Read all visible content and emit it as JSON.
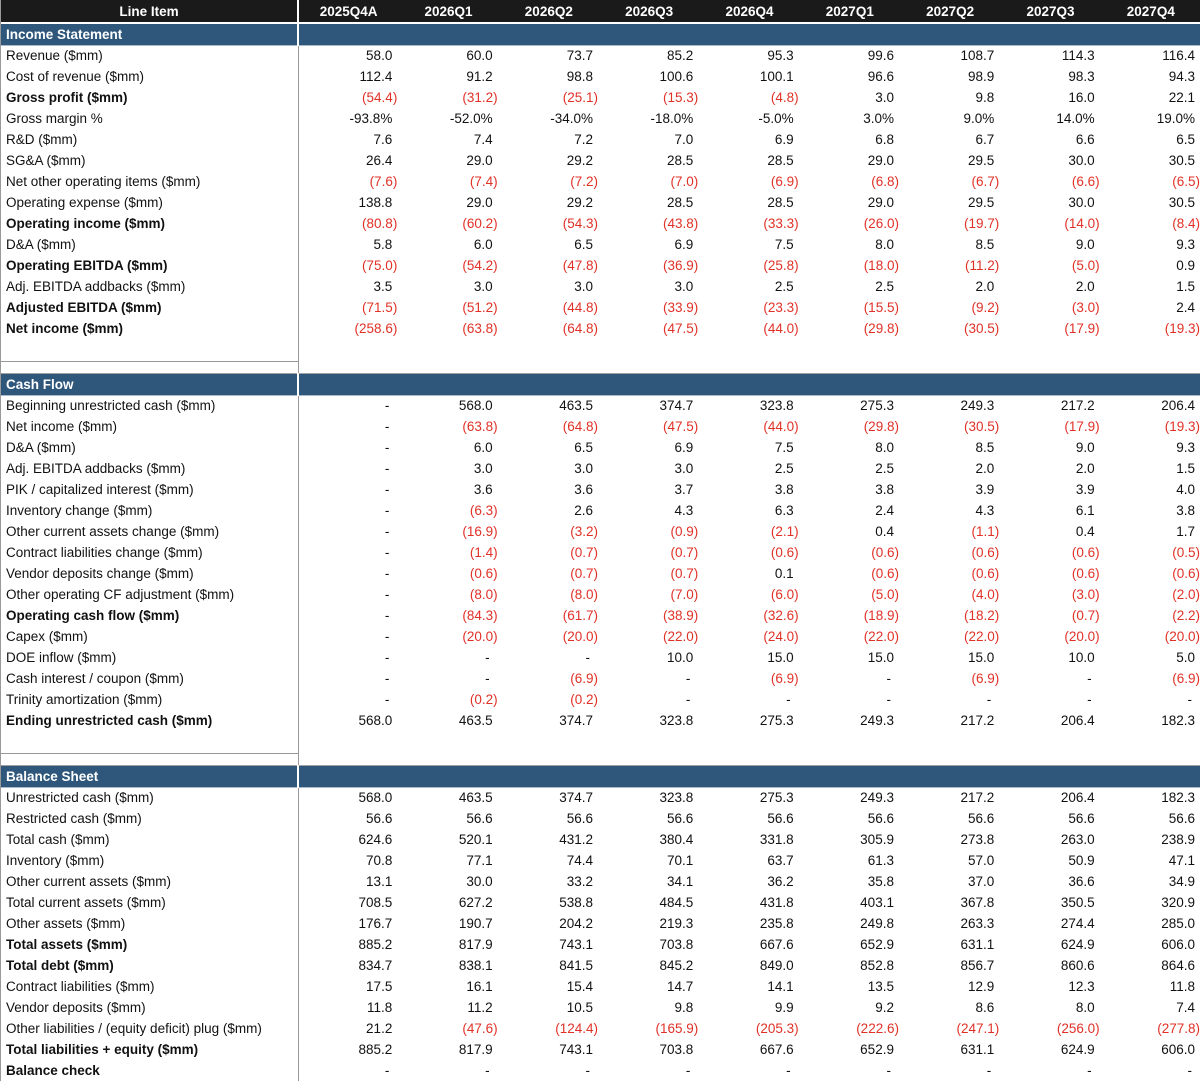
{
  "colors": {
    "header_bg": "#1a1a1a",
    "section_band_bg": "#2f577c",
    "negative_value": "#e03127",
    "grid_line": "#999999"
  },
  "header": {
    "line_item_label": "Line Item",
    "columns": [
      "2025Q4A",
      "2026Q1",
      "2026Q2",
      "2026Q3",
      "2026Q4",
      "2027Q1",
      "2027Q2",
      "2027Q3",
      "2027Q4"
    ]
  },
  "sections": [
    {
      "title": "Income Statement",
      "rows": [
        {
          "label": "Revenue ($mm)",
          "bold": false,
          "values": [
            "58.0",
            "60.0",
            "73.7",
            "85.2",
            "95.3",
            "99.6",
            "108.7",
            "114.3",
            "116.4"
          ]
        },
        {
          "label": "Cost of revenue ($mm)",
          "bold": false,
          "values": [
            "112.4",
            "91.2",
            "98.8",
            "100.6",
            "100.1",
            "96.6",
            "98.9",
            "98.3",
            "94.3"
          ]
        },
        {
          "label": "Gross profit ($mm)",
          "bold": true,
          "values": [
            "(54.4)",
            "(31.2)",
            "(25.1)",
            "(15.3)",
            "(4.8)",
            "3.0",
            "9.8",
            "16.0",
            "22.1"
          ]
        },
        {
          "label": "Gross margin %",
          "bold": false,
          "values": [
            "-93.8%",
            "-52.0%",
            "-34.0%",
            "-18.0%",
            "-5.0%",
            "3.0%",
            "9.0%",
            "14.0%",
            "19.0%"
          ]
        },
        {
          "label": "R&D ($mm)",
          "bold": false,
          "values": [
            "7.6",
            "7.4",
            "7.2",
            "7.0",
            "6.9",
            "6.8",
            "6.7",
            "6.6",
            "6.5"
          ]
        },
        {
          "label": "SG&A ($mm)",
          "bold": false,
          "values": [
            "26.4",
            "29.0",
            "29.2",
            "28.5",
            "28.5",
            "29.0",
            "29.5",
            "30.0",
            "30.5"
          ]
        },
        {
          "label": "Net other operating items ($mm)",
          "bold": false,
          "values": [
            "(7.6)",
            "(7.4)",
            "(7.2)",
            "(7.0)",
            "(6.9)",
            "(6.8)",
            "(6.7)",
            "(6.6)",
            "(6.5)"
          ]
        },
        {
          "label": "Operating expense ($mm)",
          "bold": false,
          "values": [
            "138.8",
            "29.0",
            "29.2",
            "28.5",
            "28.5",
            "29.0",
            "29.5",
            "30.0",
            "30.5"
          ]
        },
        {
          "label": "Operating income ($mm)",
          "bold": true,
          "values": [
            "(80.8)",
            "(60.2)",
            "(54.3)",
            "(43.8)",
            "(33.3)",
            "(26.0)",
            "(19.7)",
            "(14.0)",
            "(8.4)"
          ]
        },
        {
          "label": "D&A ($mm)",
          "bold": false,
          "values": [
            "5.8",
            "6.0",
            "6.5",
            "6.9",
            "7.5",
            "8.0",
            "8.5",
            "9.0",
            "9.3"
          ]
        },
        {
          "label": "Operating EBITDA ($mm)",
          "bold": true,
          "values": [
            "(75.0)",
            "(54.2)",
            "(47.8)",
            "(36.9)",
            "(25.8)",
            "(18.0)",
            "(11.2)",
            "(5.0)",
            "0.9"
          ]
        },
        {
          "label": "Adj. EBITDA addbacks ($mm)",
          "bold": false,
          "values": [
            "3.5",
            "3.0",
            "3.0",
            "3.0",
            "2.5",
            "2.5",
            "2.0",
            "2.0",
            "1.5"
          ]
        },
        {
          "label": "Adjusted EBITDA ($mm)",
          "bold": true,
          "values": [
            "(71.5)",
            "(51.2)",
            "(44.8)",
            "(33.9)",
            "(23.3)",
            "(15.5)",
            "(9.2)",
            "(3.0)",
            "2.4"
          ]
        },
        {
          "label": "Net income ($mm)",
          "bold": true,
          "values": [
            "(258.6)",
            "(63.8)",
            "(64.8)",
            "(47.5)",
            "(44.0)",
            "(29.8)",
            "(30.5)",
            "(17.9)",
            "(19.3)"
          ]
        }
      ]
    },
    {
      "title": "Cash Flow",
      "rows": [
        {
          "label": "Beginning unrestricted cash ($mm)",
          "bold": false,
          "values": [
            "-",
            "568.0",
            "463.5",
            "374.7",
            "323.8",
            "275.3",
            "249.3",
            "217.2",
            "206.4"
          ]
        },
        {
          "label": "Net income ($mm)",
          "bold": false,
          "values": [
            "-",
            "(63.8)",
            "(64.8)",
            "(47.5)",
            "(44.0)",
            "(29.8)",
            "(30.5)",
            "(17.9)",
            "(19.3)"
          ]
        },
        {
          "label": "D&A ($mm)",
          "bold": false,
          "values": [
            "-",
            "6.0",
            "6.5",
            "6.9",
            "7.5",
            "8.0",
            "8.5",
            "9.0",
            "9.3"
          ]
        },
        {
          "label": "Adj. EBITDA addbacks ($mm)",
          "bold": false,
          "values": [
            "-",
            "3.0",
            "3.0",
            "3.0",
            "2.5",
            "2.5",
            "2.0",
            "2.0",
            "1.5"
          ]
        },
        {
          "label": "PIK / capitalized interest ($mm)",
          "bold": false,
          "values": [
            "-",
            "3.6",
            "3.6",
            "3.7",
            "3.8",
            "3.8",
            "3.9",
            "3.9",
            "4.0"
          ]
        },
        {
          "label": "Inventory change ($mm)",
          "bold": false,
          "values": [
            "-",
            "(6.3)",
            "2.6",
            "4.3",
            "6.3",
            "2.4",
            "4.3",
            "6.1",
            "3.8"
          ]
        },
        {
          "label": "Other current assets change ($mm)",
          "bold": false,
          "values": [
            "-",
            "(16.9)",
            "(3.2)",
            "(0.9)",
            "(2.1)",
            "0.4",
            "(1.1)",
            "0.4",
            "1.7"
          ]
        },
        {
          "label": "Contract liabilities change ($mm)",
          "bold": false,
          "values": [
            "-",
            "(1.4)",
            "(0.7)",
            "(0.7)",
            "(0.6)",
            "(0.6)",
            "(0.6)",
            "(0.6)",
            "(0.5)"
          ]
        },
        {
          "label": "Vendor deposits change ($mm)",
          "bold": false,
          "values": [
            "-",
            "(0.6)",
            "(0.7)",
            "(0.7)",
            "0.1",
            "(0.6)",
            "(0.6)",
            "(0.6)",
            "(0.6)"
          ]
        },
        {
          "label": "Other operating CF adjustment ($mm)",
          "bold": false,
          "values": [
            "-",
            "(8.0)",
            "(8.0)",
            "(7.0)",
            "(6.0)",
            "(5.0)",
            "(4.0)",
            "(3.0)",
            "(2.0)"
          ]
        },
        {
          "label": "Operating cash flow ($mm)",
          "bold": true,
          "values": [
            "-",
            "(84.3)",
            "(61.7)",
            "(38.9)",
            "(32.6)",
            "(18.9)",
            "(18.2)",
            "(0.7)",
            "(2.2)"
          ]
        },
        {
          "label": "Capex ($mm)",
          "bold": false,
          "values": [
            "-",
            "(20.0)",
            "(20.0)",
            "(22.0)",
            "(24.0)",
            "(22.0)",
            "(22.0)",
            "(20.0)",
            "(20.0)"
          ]
        },
        {
          "label": "DOE inflow ($mm)",
          "bold": false,
          "values": [
            "-",
            "-",
            "-",
            "10.0",
            "15.0",
            "15.0",
            "15.0",
            "10.0",
            "5.0"
          ]
        },
        {
          "label": "Cash interest / coupon ($mm)",
          "bold": false,
          "values": [
            "-",
            "-",
            "(6.9)",
            "-",
            "(6.9)",
            "-",
            "(6.9)",
            "-",
            "(6.9)"
          ]
        },
        {
          "label": "Trinity amortization ($mm)",
          "bold": false,
          "values": [
            "-",
            "(0.2)",
            "(0.2)",
            "-",
            "-",
            "-",
            "-",
            "-",
            "-"
          ]
        },
        {
          "label": "Ending unrestricted cash ($mm)",
          "bold": true,
          "values": [
            "568.0",
            "463.5",
            "374.7",
            "323.8",
            "275.3",
            "249.3",
            "217.2",
            "206.4",
            "182.3"
          ]
        }
      ]
    },
    {
      "title": "Balance Sheet",
      "rows": [
        {
          "label": "Unrestricted cash ($mm)",
          "bold": false,
          "values": [
            "568.0",
            "463.5",
            "374.7",
            "323.8",
            "275.3",
            "249.3",
            "217.2",
            "206.4",
            "182.3"
          ]
        },
        {
          "label": "Restricted cash ($mm)",
          "bold": false,
          "values": [
            "56.6",
            "56.6",
            "56.6",
            "56.6",
            "56.6",
            "56.6",
            "56.6",
            "56.6",
            "56.6"
          ]
        },
        {
          "label": "Total cash ($mm)",
          "bold": false,
          "values": [
            "624.6",
            "520.1",
            "431.2",
            "380.4",
            "331.8",
            "305.9",
            "273.8",
            "263.0",
            "238.9"
          ]
        },
        {
          "label": "Inventory ($mm)",
          "bold": false,
          "values": [
            "70.8",
            "77.1",
            "74.4",
            "70.1",
            "63.7",
            "61.3",
            "57.0",
            "50.9",
            "47.1"
          ]
        },
        {
          "label": "Other current assets ($mm)",
          "bold": false,
          "values": [
            "13.1",
            "30.0",
            "33.2",
            "34.1",
            "36.2",
            "35.8",
            "37.0",
            "36.6",
            "34.9"
          ]
        },
        {
          "label": "Total current assets ($mm)",
          "bold": false,
          "values": [
            "708.5",
            "627.2",
            "538.8",
            "484.5",
            "431.8",
            "403.1",
            "367.8",
            "350.5",
            "320.9"
          ]
        },
        {
          "label": "Other assets ($mm)",
          "bold": false,
          "values": [
            "176.7",
            "190.7",
            "204.2",
            "219.3",
            "235.8",
            "249.8",
            "263.3",
            "274.4",
            "285.0"
          ]
        },
        {
          "label": "Total assets ($mm)",
          "bold": true,
          "values": [
            "885.2",
            "817.9",
            "743.1",
            "703.8",
            "667.6",
            "652.9",
            "631.1",
            "624.9",
            "606.0"
          ]
        },
        {
          "label": "Total debt ($mm)",
          "bold": true,
          "values": [
            "834.7",
            "838.1",
            "841.5",
            "845.2",
            "849.0",
            "852.8",
            "856.7",
            "860.6",
            "864.6"
          ]
        },
        {
          "label": "Contract liabilities ($mm)",
          "bold": false,
          "values": [
            "17.5",
            "16.1",
            "15.4",
            "14.7",
            "14.1",
            "13.5",
            "12.9",
            "12.3",
            "11.8"
          ]
        },
        {
          "label": "Vendor deposits ($mm)",
          "bold": false,
          "values": [
            "11.8",
            "11.2",
            "10.5",
            "9.8",
            "9.9",
            "9.2",
            "8.6",
            "8.0",
            "7.4"
          ]
        },
        {
          "label": "Other liabilities / (equity deficit) plug ($mm)",
          "bold": false,
          "values": [
            "21.2",
            "(47.6)",
            "(124.4)",
            "(165.9)",
            "(205.3)",
            "(222.6)",
            "(247.1)",
            "(256.0)",
            "(277.8)"
          ]
        },
        {
          "label": "Total liabilities + equity ($mm)",
          "bold": true,
          "values": [
            "885.2",
            "817.9",
            "743.1",
            "703.8",
            "667.6",
            "652.9",
            "631.1",
            "624.9",
            "606.0"
          ]
        },
        {
          "label": "Balance check",
          "bold": true,
          "values": [
            "-",
            "-",
            "-",
            "-",
            "-",
            "-",
            "-",
            "-",
            "-"
          ]
        }
      ]
    }
  ]
}
